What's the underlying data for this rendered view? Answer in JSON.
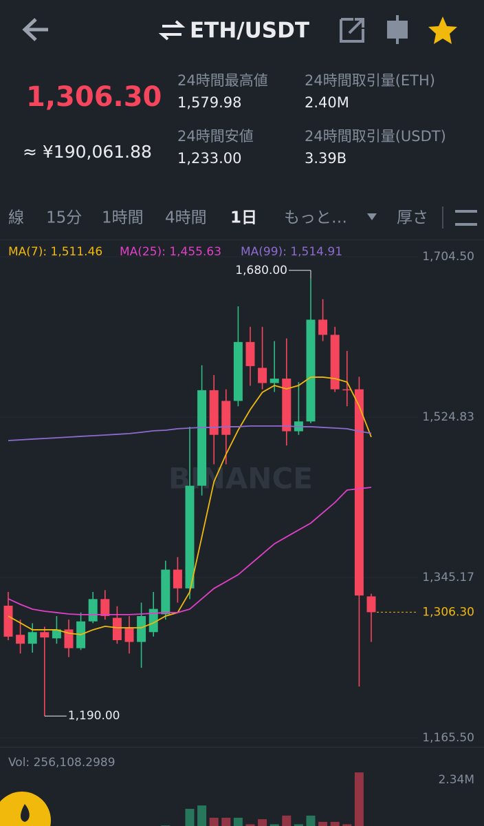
{
  "header": {
    "pair": "ETH/USDT",
    "price": "1,306.30",
    "fiat_price": "≈ ¥190,061.88",
    "stats": [
      {
        "label": "24時間最高値",
        "value": "1,579.98"
      },
      {
        "label": "24時間取引量(ETH)",
        "value": "2.40M"
      },
      {
        "label": "24時間安値",
        "value": "1,233.00"
      },
      {
        "label": "24時間取引量(USDT)",
        "value": "3.39B"
      }
    ]
  },
  "tabs": [
    "線",
    "15分",
    "1時間",
    "4時間",
    "1日",
    "もっと…",
    "厚さ"
  ],
  "chart_data": {
    "type": "candlestick",
    "watermark": "BINANCE",
    "up_color": "#2ebd85",
    "down_color": "#f6465d",
    "open": [
      1313.6,
      1281,
      1271,
      1284,
      1277,
      1287,
      1266,
      1296,
      1321,
      1300,
      1289,
      1273,
      1284,
      1304,
      1354,
      1333,
      1448,
      1555,
      1543,
      1543,
      1609,
      1580,
      1563,
      1568,
      1509,
      1520,
      1634,
      1617,
      1556,
      1556,
      1324
    ],
    "high": [
      1329,
      1298,
      1294,
      1290,
      1302,
      1298,
      1306,
      1329,
      1331,
      1313,
      1302,
      1317,
      1329,
      1364,
      1368,
      1514,
      1583,
      1572,
      1556,
      1649,
      1626,
      1626,
      1610,
      1613,
      1564,
      1680,
      1657,
      1626,
      1599,
      1570,
      1327
    ],
    "low": [
      1275,
      1260,
      1261,
      1190,
      1271,
      1256,
      1264,
      1294,
      1298,
      1271,
      1260,
      1244,
      1279,
      1298,
      1317,
      1321,
      1437,
      1472,
      1472,
      1537,
      1560,
      1556,
      1553,
      1493,
      1505,
      1518,
      1610,
      1553,
      1537,
      1223,
      1273
    ],
    "close": [
      1278.9,
      1271,
      1284,
      1278,
      1287,
      1266,
      1296,
      1321,
      1302,
      1275,
      1273,
      1302,
      1310,
      1354,
      1333,
      1448,
      1555,
      1505,
      1505,
      1609,
      1582,
      1563,
      1568,
      1509,
      1520,
      1634,
      1617,
      1556,
      1555,
      1325,
      1306.3
    ],
    "ylim": [
      1165.5,
      1704.5
    ],
    "yticks": [
      {
        "value": 1704.5,
        "label": "1,704.50"
      },
      {
        "value": 1524.83,
        "label": "1,524.83"
      },
      {
        "value": 1345.17,
        "label": "1,345.17"
      },
      {
        "value": 1165.5,
        "label": "1,165.50"
      }
    ],
    "high_label": "1,680.00",
    "low_label": "1,190.00",
    "last_price": {
      "value": 1306.3,
      "label": "1,306.30"
    },
    "series": [
      {
        "legend": "MA(7): 1,511.46",
        "color": "#f0b90b",
        "values": [
          1302.0,
          1294.3,
          1286.6,
          1286.6,
          1286.6,
          1282.8,
          1281.2,
          1286.6,
          1290.5,
          1288.9,
          1288.9,
          1288.9,
          1294.3,
          1302.0,
          1305.9,
          1329.0,
          1390.7,
          1452.4,
          1483.2,
          1510.2,
          1533.3,
          1552.6,
          1560.3,
          1556.5,
          1560.3,
          1569.6,
          1569.6,
          1568.0,
          1564.2,
          1537.2,
          1502.5
        ]
      },
      {
        "legend": "MA(25): 1,455.63",
        "color": "#e040c8",
        "values": [
          1321.3,
          1315.1,
          1309.7,
          1307.4,
          1305.9,
          1304.3,
          1303.6,
          1303.6,
          1303.6,
          1303.6,
          1303.6,
          1304.3,
          1305.1,
          1305.9,
          1305.9,
          1309.7,
          1321.3,
          1332.9,
          1340.6,
          1348.3,
          1359.9,
          1371.4,
          1383.0,
          1390.7,
          1398.4,
          1406.1,
          1417.7,
          1429.2,
          1443.1,
          1444.7,
          1446.2
        ]
      },
      {
        "legend": "MA(99): 1,514.91",
        "color": "#8e6bd0",
        "values": [
          1498.6,
          1499.4,
          1500.2,
          1500.9,
          1501.7,
          1502.5,
          1503.3,
          1504.0,
          1504.8,
          1505.6,
          1506.4,
          1507.9,
          1509.5,
          1510.2,
          1511.8,
          1512.6,
          1513.3,
          1513.3,
          1514.1,
          1514.1,
          1514.9,
          1514.9,
          1514.9,
          1514.9,
          1514.1,
          1514.1,
          1513.3,
          1512.6,
          1511.8,
          1509.0,
          1506.7
        ]
      }
    ],
    "volume_label": "Vol: 256,108.2989",
    "volume": [
      300000,
      250000,
      200000,
      350000,
      250000,
      300000,
      300000,
      350000,
      300000,
      250000,
      250000,
      300000,
      300000,
      450000,
      400000,
      1140000,
      1280000,
      770000,
      770000,
      770000,
      500000,
      710000,
      500000,
      860000,
      500000,
      860000,
      600000,
      600000,
      500000,
      2650000,
      400000
    ],
    "volume_ylim": [
      0,
      2340000
    ],
    "volume_yticks": [
      {
        "value": 2340000,
        "label": "2.34M"
      }
    ]
  }
}
